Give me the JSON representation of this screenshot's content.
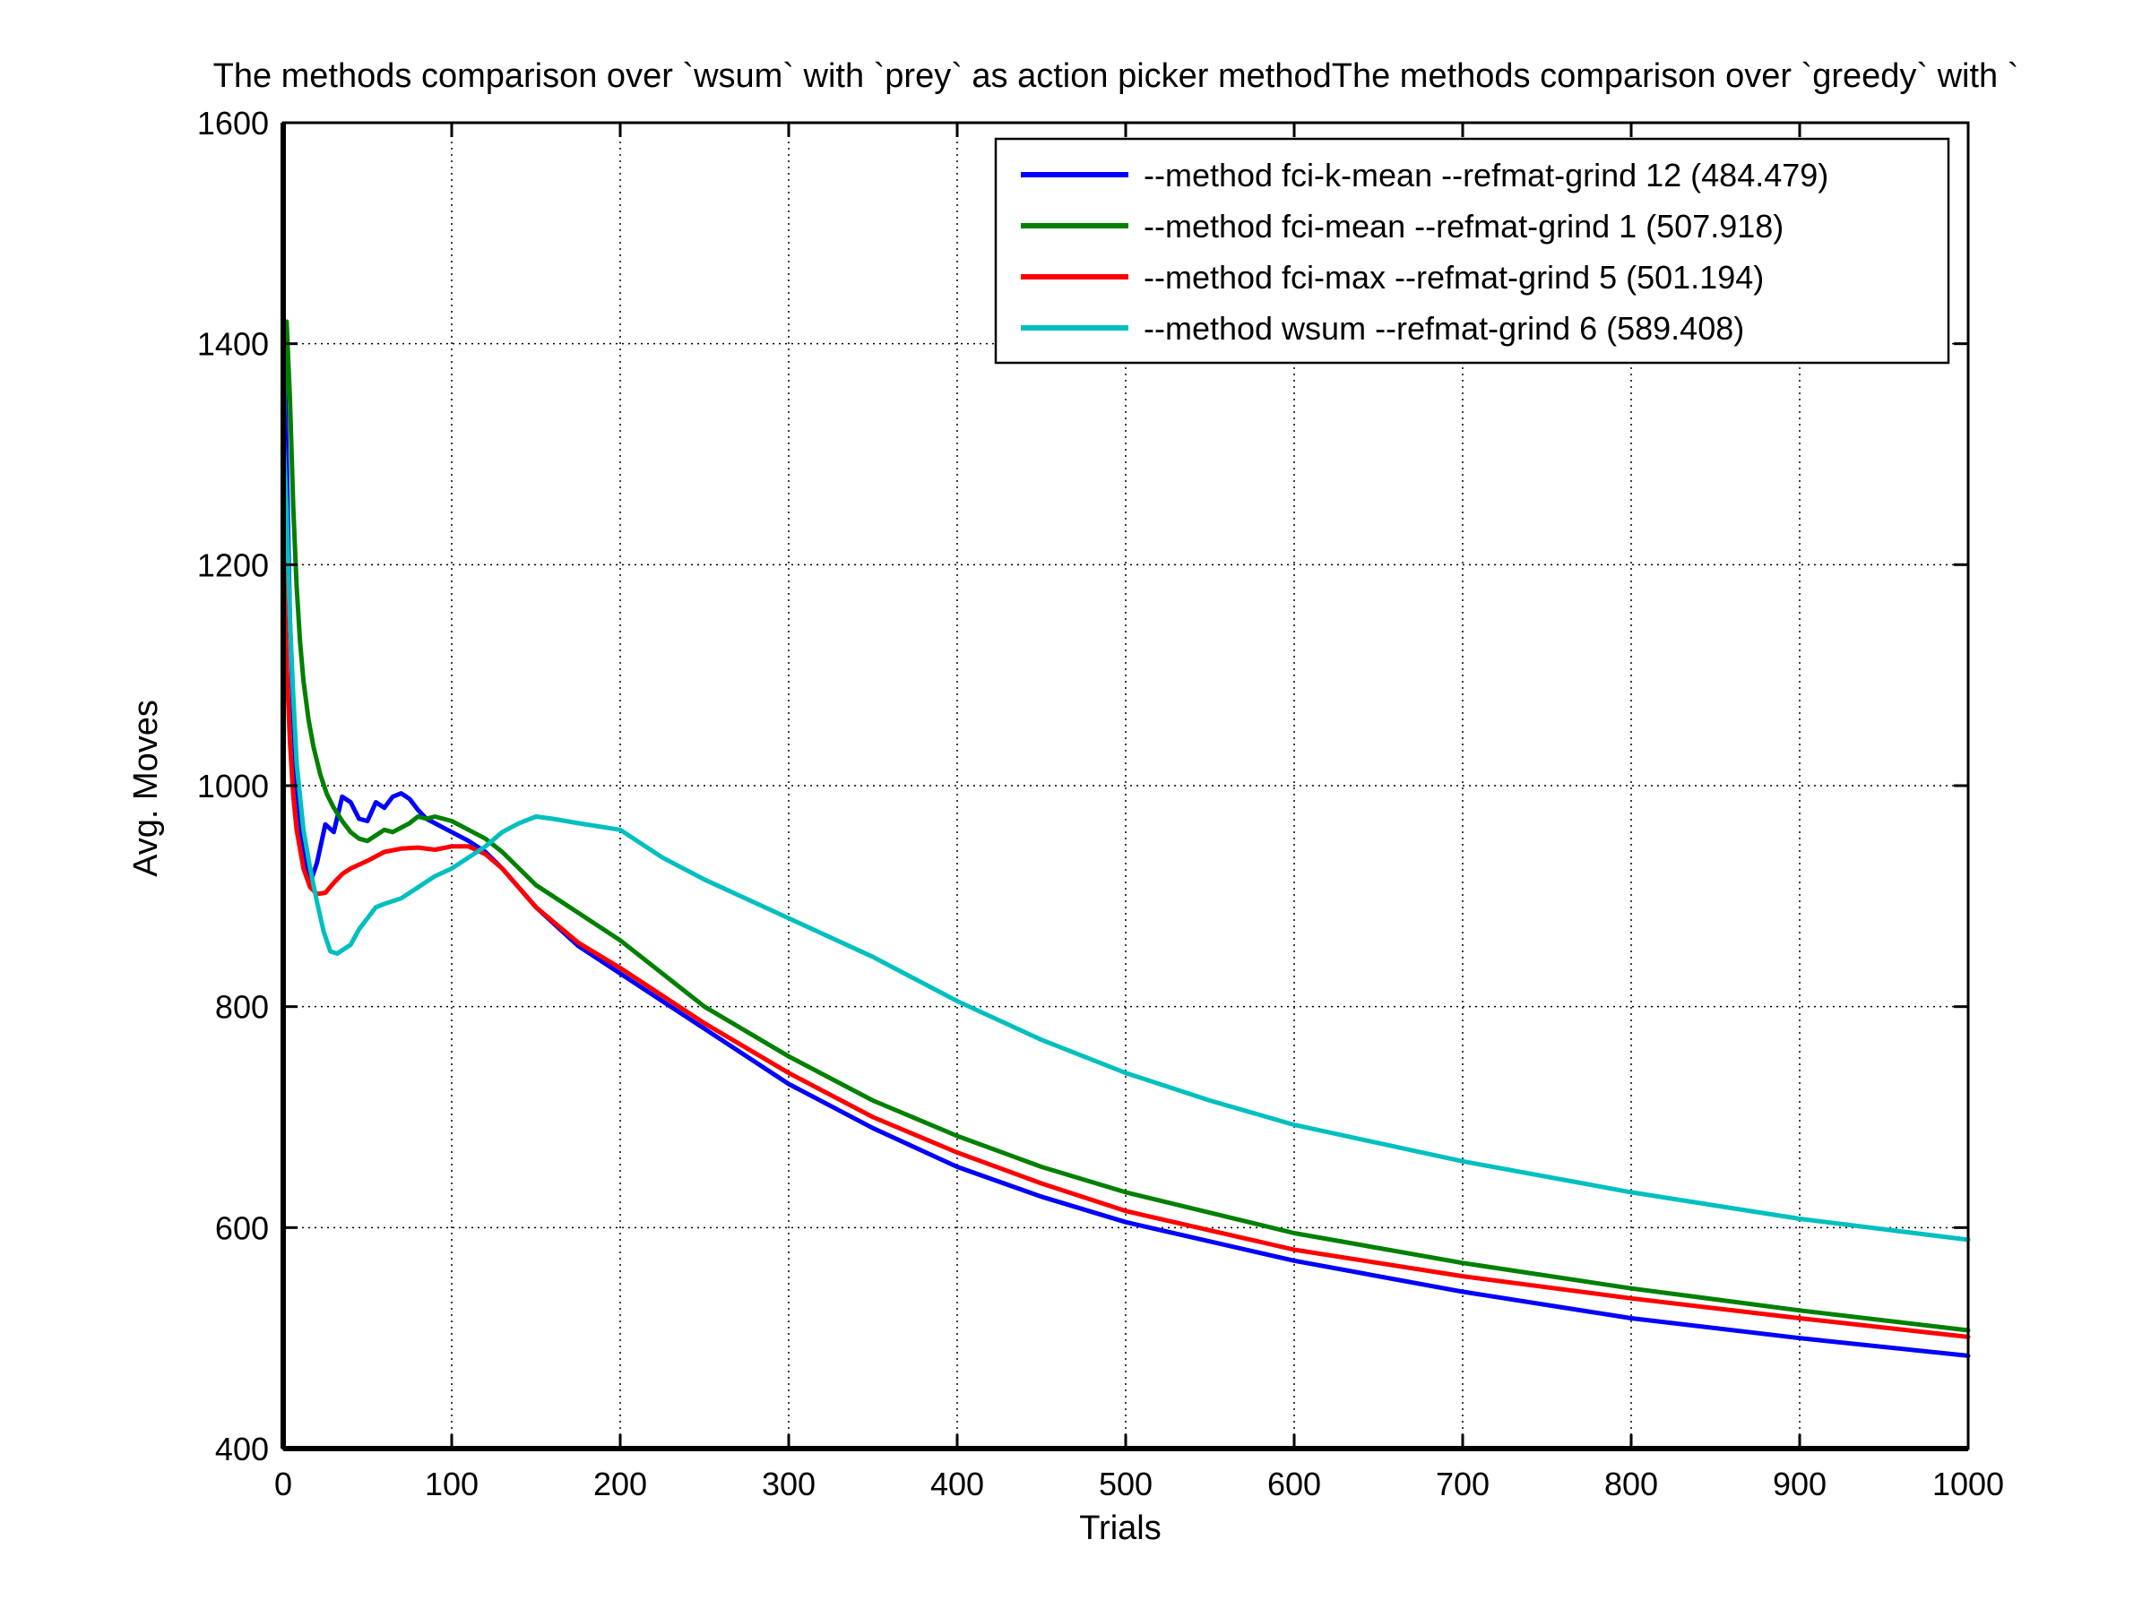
{
  "chart_data": {
    "type": "line",
    "title": "The methods comparison over `wsum` with `prey` as action picker methodThe methods comparison over `greedy` with `",
    "xlabel": "Trials",
    "ylabel": "Avg. Moves",
    "xlim": [
      0,
      1000
    ],
    "ylim": [
      400,
      1600
    ],
    "xticks": [
      0,
      100,
      200,
      300,
      400,
      500,
      600,
      700,
      800,
      900,
      1000
    ],
    "yticks": [
      400,
      600,
      800,
      1000,
      1200,
      1400,
      1600
    ],
    "grid": true,
    "legend_position": "top-right",
    "series": [
      {
        "name": "--method fci-k-mean --refmat-grind 12 (484.479)",
        "color": "#0000ff",
        "x": [
          0,
          2,
          4,
          6,
          8,
          12,
          16,
          20,
          25,
          30,
          35,
          40,
          45,
          50,
          55,
          60,
          65,
          70,
          75,
          80,
          85,
          90,
          95,
          100,
          110,
          120,
          130,
          150,
          175,
          200,
          250,
          300,
          350,
          400,
          450,
          500,
          600,
          700,
          800,
          900,
          1000
        ],
        "y": [
          1440,
          1300,
          1150,
          1060,
          1000,
          940,
          912,
          930,
          965,
          958,
          990,
          985,
          970,
          968,
          985,
          980,
          990,
          993,
          988,
          978,
          970,
          966,
          962,
          958,
          950,
          940,
          925,
          890,
          855,
          830,
          780,
          730,
          690,
          655,
          628,
          605,
          570,
          542,
          518,
          500,
          484
        ]
      },
      {
        "name": "--method fci-mean --refmat-grind 1 (507.918)",
        "color": "#008000",
        "x": [
          0,
          2,
          4,
          6,
          8,
          10,
          12,
          15,
          18,
          22,
          26,
          30,
          35,
          40,
          45,
          50,
          55,
          60,
          65,
          70,
          75,
          80,
          85,
          90,
          100,
          110,
          120,
          130,
          150,
          175,
          200,
          250,
          300,
          350,
          400,
          450,
          500,
          600,
          700,
          800,
          900,
          1000
        ],
        "y": [
          1300,
          1420,
          1350,
          1250,
          1180,
          1130,
          1095,
          1060,
          1035,
          1010,
          992,
          980,
          968,
          958,
          952,
          950,
          955,
          960,
          958,
          962,
          966,
          972,
          970,
          972,
          968,
          960,
          952,
          940,
          910,
          885,
          860,
          800,
          755,
          715,
          683,
          655,
          632,
          595,
          568,
          545,
          525,
          507
        ]
      },
      {
        "name": "--method fci-max --refmat-grind 5 (501.194)",
        "color": "#ff0000",
        "x": [
          0,
          2,
          4,
          6,
          8,
          12,
          16,
          20,
          25,
          30,
          35,
          40,
          50,
          60,
          70,
          80,
          90,
          100,
          110,
          120,
          130,
          150,
          175,
          200,
          250,
          300,
          350,
          400,
          450,
          500,
          600,
          700,
          800,
          900,
          1000
        ],
        "y": [
          1230,
          1110,
          1040,
          990,
          960,
          925,
          908,
          902,
          903,
          912,
          920,
          925,
          932,
          940,
          943,
          944,
          942,
          945,
          945,
          938,
          925,
          890,
          858,
          835,
          785,
          740,
          700,
          668,
          640,
          615,
          580,
          556,
          536,
          518,
          501
        ]
      },
      {
        "name": "--method wsum --refmat-grind 6 (589.408)",
        "color": "#00bfbf",
        "x": [
          0,
          2,
          4,
          6,
          8,
          12,
          16,
          20,
          24,
          28,
          32,
          36,
          40,
          45,
          50,
          55,
          60,
          70,
          80,
          90,
          100,
          110,
          120,
          130,
          140,
          150,
          160,
          175,
          200,
          225,
          250,
          300,
          350,
          400,
          450,
          500,
          550,
          600,
          700,
          800,
          900,
          1000
        ],
        "y": [
          1320,
          1250,
          1150,
          1080,
          1020,
          960,
          925,
          895,
          868,
          850,
          848,
          852,
          856,
          870,
          880,
          890,
          893,
          898,
          908,
          918,
          925,
          935,
          945,
          958,
          966,
          972,
          970,
          966,
          960,
          935,
          915,
          880,
          845,
          805,
          770,
          740,
          715,
          693,
          660,
          632,
          608,
          589
        ]
      }
    ]
  }
}
